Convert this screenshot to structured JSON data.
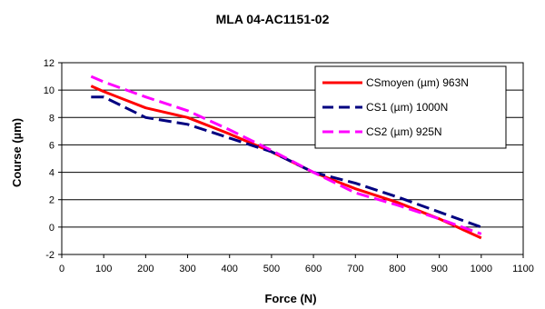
{
  "chart_data": {
    "type": "line",
    "title": "MLA 04-AC1151-02",
    "xlabel": "Force (N)",
    "ylabel": "Course (µm)",
    "xlim": [
      0,
      1100
    ],
    "ylim": [
      -2,
      12
    ],
    "x_ticks": [
      0,
      100,
      200,
      300,
      400,
      500,
      600,
      700,
      800,
      900,
      1000,
      1100
    ],
    "y_ticks": [
      -2,
      0,
      2,
      4,
      6,
      8,
      10,
      12
    ],
    "grid": "horizontal",
    "legend_position": "top-right",
    "series": [
      {
        "name": "CSmoyen (µm) 963N",
        "color": "#ff0000",
        "dash": "solid",
        "x": [
          70,
          100,
          200,
          300,
          400,
          500,
          600,
          700,
          800,
          900,
          1000
        ],
        "y": [
          10.3,
          9.9,
          8.7,
          8.0,
          6.8,
          5.5,
          4.0,
          2.8,
          1.8,
          0.6,
          -0.8
        ]
      },
      {
        "name": "CS1 (µm) 1000N",
        "color": "#000080",
        "dash": "dashed",
        "x": [
          70,
          100,
          200,
          300,
          400,
          500,
          600,
          700,
          800,
          900,
          1000
        ],
        "y": [
          9.5,
          9.5,
          8.0,
          7.5,
          6.5,
          5.5,
          4.0,
          3.2,
          2.2,
          1.1,
          0.0
        ]
      },
      {
        "name": "CS2 (µm) 925N",
        "color": "#ff00ff",
        "dash": "dashed",
        "x": [
          70,
          100,
          200,
          300,
          400,
          500,
          600,
          700,
          800,
          900,
          1000
        ],
        "y": [
          11.0,
          10.6,
          9.5,
          8.5,
          7.1,
          5.6,
          4.0,
          2.5,
          1.6,
          0.6,
          -0.5
        ]
      }
    ]
  }
}
